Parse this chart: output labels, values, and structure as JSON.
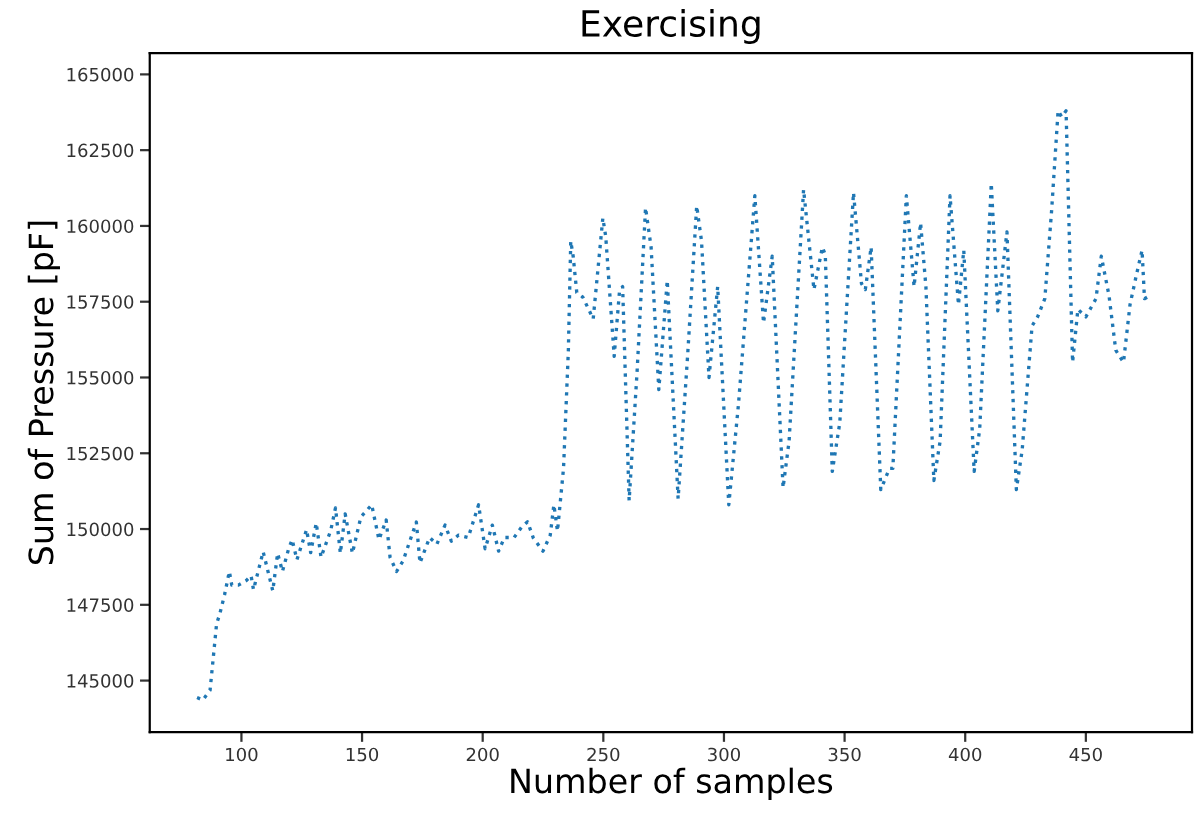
{
  "chart_data": {
    "type": "line",
    "title": "Exercising",
    "xlabel": "Number of samples",
    "ylabel": "Sum of Pressure [pF]",
    "line_style": "dotted",
    "marker": "none",
    "grid": false,
    "xlim": [
      62,
      494
    ],
    "ylim": [
      143300,
      165700
    ],
    "xticks": [
      100,
      150,
      200,
      250,
      300,
      350,
      400,
      450
    ],
    "yticks": [
      145000,
      147500,
      150000,
      152500,
      155000,
      157500,
      160000,
      162500,
      165000
    ],
    "series": [
      {
        "color": "#1f77b4",
        "x": [
          81.6,
          84,
          87,
          89.7,
          91,
          93,
          95,
          96,
          98.7,
          102,
          104,
          105,
          109,
          113,
          115,
          117,
          119.5,
          121,
          123,
          127,
          128.7,
          131,
          133,
          137,
          139,
          141,
          143,
          146,
          149.5,
          154,
          157,
          160,
          161.6,
          164.3,
          167,
          172.5,
          174,
          178,
          181,
          184.4,
          187,
          190,
          194,
          198.3,
          201,
          204,
          206.6,
          209,
          213,
          216,
          218.6,
          221,
          225,
          228,
          229.5,
          231,
          233.5,
          235.5,
          236.5,
          237.5,
          239,
          241.5,
          243.6,
          245.8,
          249.8,
          251,
          254.5,
          256.7,
          258,
          260.7,
          264,
          267.5,
          269.8,
          273,
          276.5,
          281,
          285,
          288.7,
          290.7,
          293.8,
          297.4,
          302,
          306,
          312.8,
          316.4,
          320,
          324.5,
          327,
          333,
          337.3,
          340.8,
          342,
          344.9,
          348,
          353.7,
          357,
          358.6,
          361,
          365,
          368.6,
          370,
          375.6,
          378.8,
          381.5,
          383.7,
          387,
          389.6,
          393.7,
          397.2,
          399.4,
          403.7,
          406,
          410.8,
          413.5,
          417.3,
          421.2,
          423.6,
          427.7,
          430,
          433,
          435.8,
          438.5,
          440,
          441.8,
          444.5,
          446.7,
          450,
          454.2,
          456.4,
          459.6,
          462.4,
          465.6,
          468.3,
          471,
          473.3,
          474.3,
          476.5
        ],
        "values": [
          144440,
          144360,
          144680,
          146870,
          147190,
          147830,
          148600,
          148150,
          148150,
          148300,
          148460,
          148000,
          149250,
          147960,
          149200,
          148600,
          149330,
          149650,
          148990,
          149980,
          149220,
          150200,
          149070,
          149950,
          150700,
          149200,
          150500,
          149200,
          150400,
          150800,
          149650,
          150300,
          149070,
          148600,
          148950,
          150230,
          148880,
          149720,
          149500,
          150130,
          149600,
          149800,
          149720,
          150800,
          149350,
          150130,
          149270,
          149720,
          149720,
          150050,
          150240,
          149700,
          149270,
          149800,
          150800,
          149930,
          152000,
          155870,
          159500,
          159000,
          157800,
          157650,
          157300,
          156930,
          160260,
          159650,
          155700,
          157840,
          158000,
          150940,
          155200,
          160600,
          159300,
          154600,
          158200,
          151000,
          155800,
          160660,
          159500,
          155000,
          158000,
          150800,
          154100,
          161000,
          156800,
          159000,
          151360,
          152900,
          161200,
          157900,
          159300,
          159050,
          151900,
          153500,
          161100,
          158100,
          157900,
          159300,
          151300,
          152000,
          152000,
          161000,
          158000,
          160100,
          158000,
          151600,
          152900,
          161000,
          157400,
          159200,
          151900,
          153300,
          161400,
          157200,
          159800,
          151300,
          152600,
          156700,
          157000,
          157600,
          160500,
          163800,
          163600,
          163800,
          155500,
          157250,
          157000,
          157600,
          159000,
          157700,
          155900,
          155500,
          157400,
          158400,
          159200,
          157600,
          157700
        ]
      }
    ]
  }
}
